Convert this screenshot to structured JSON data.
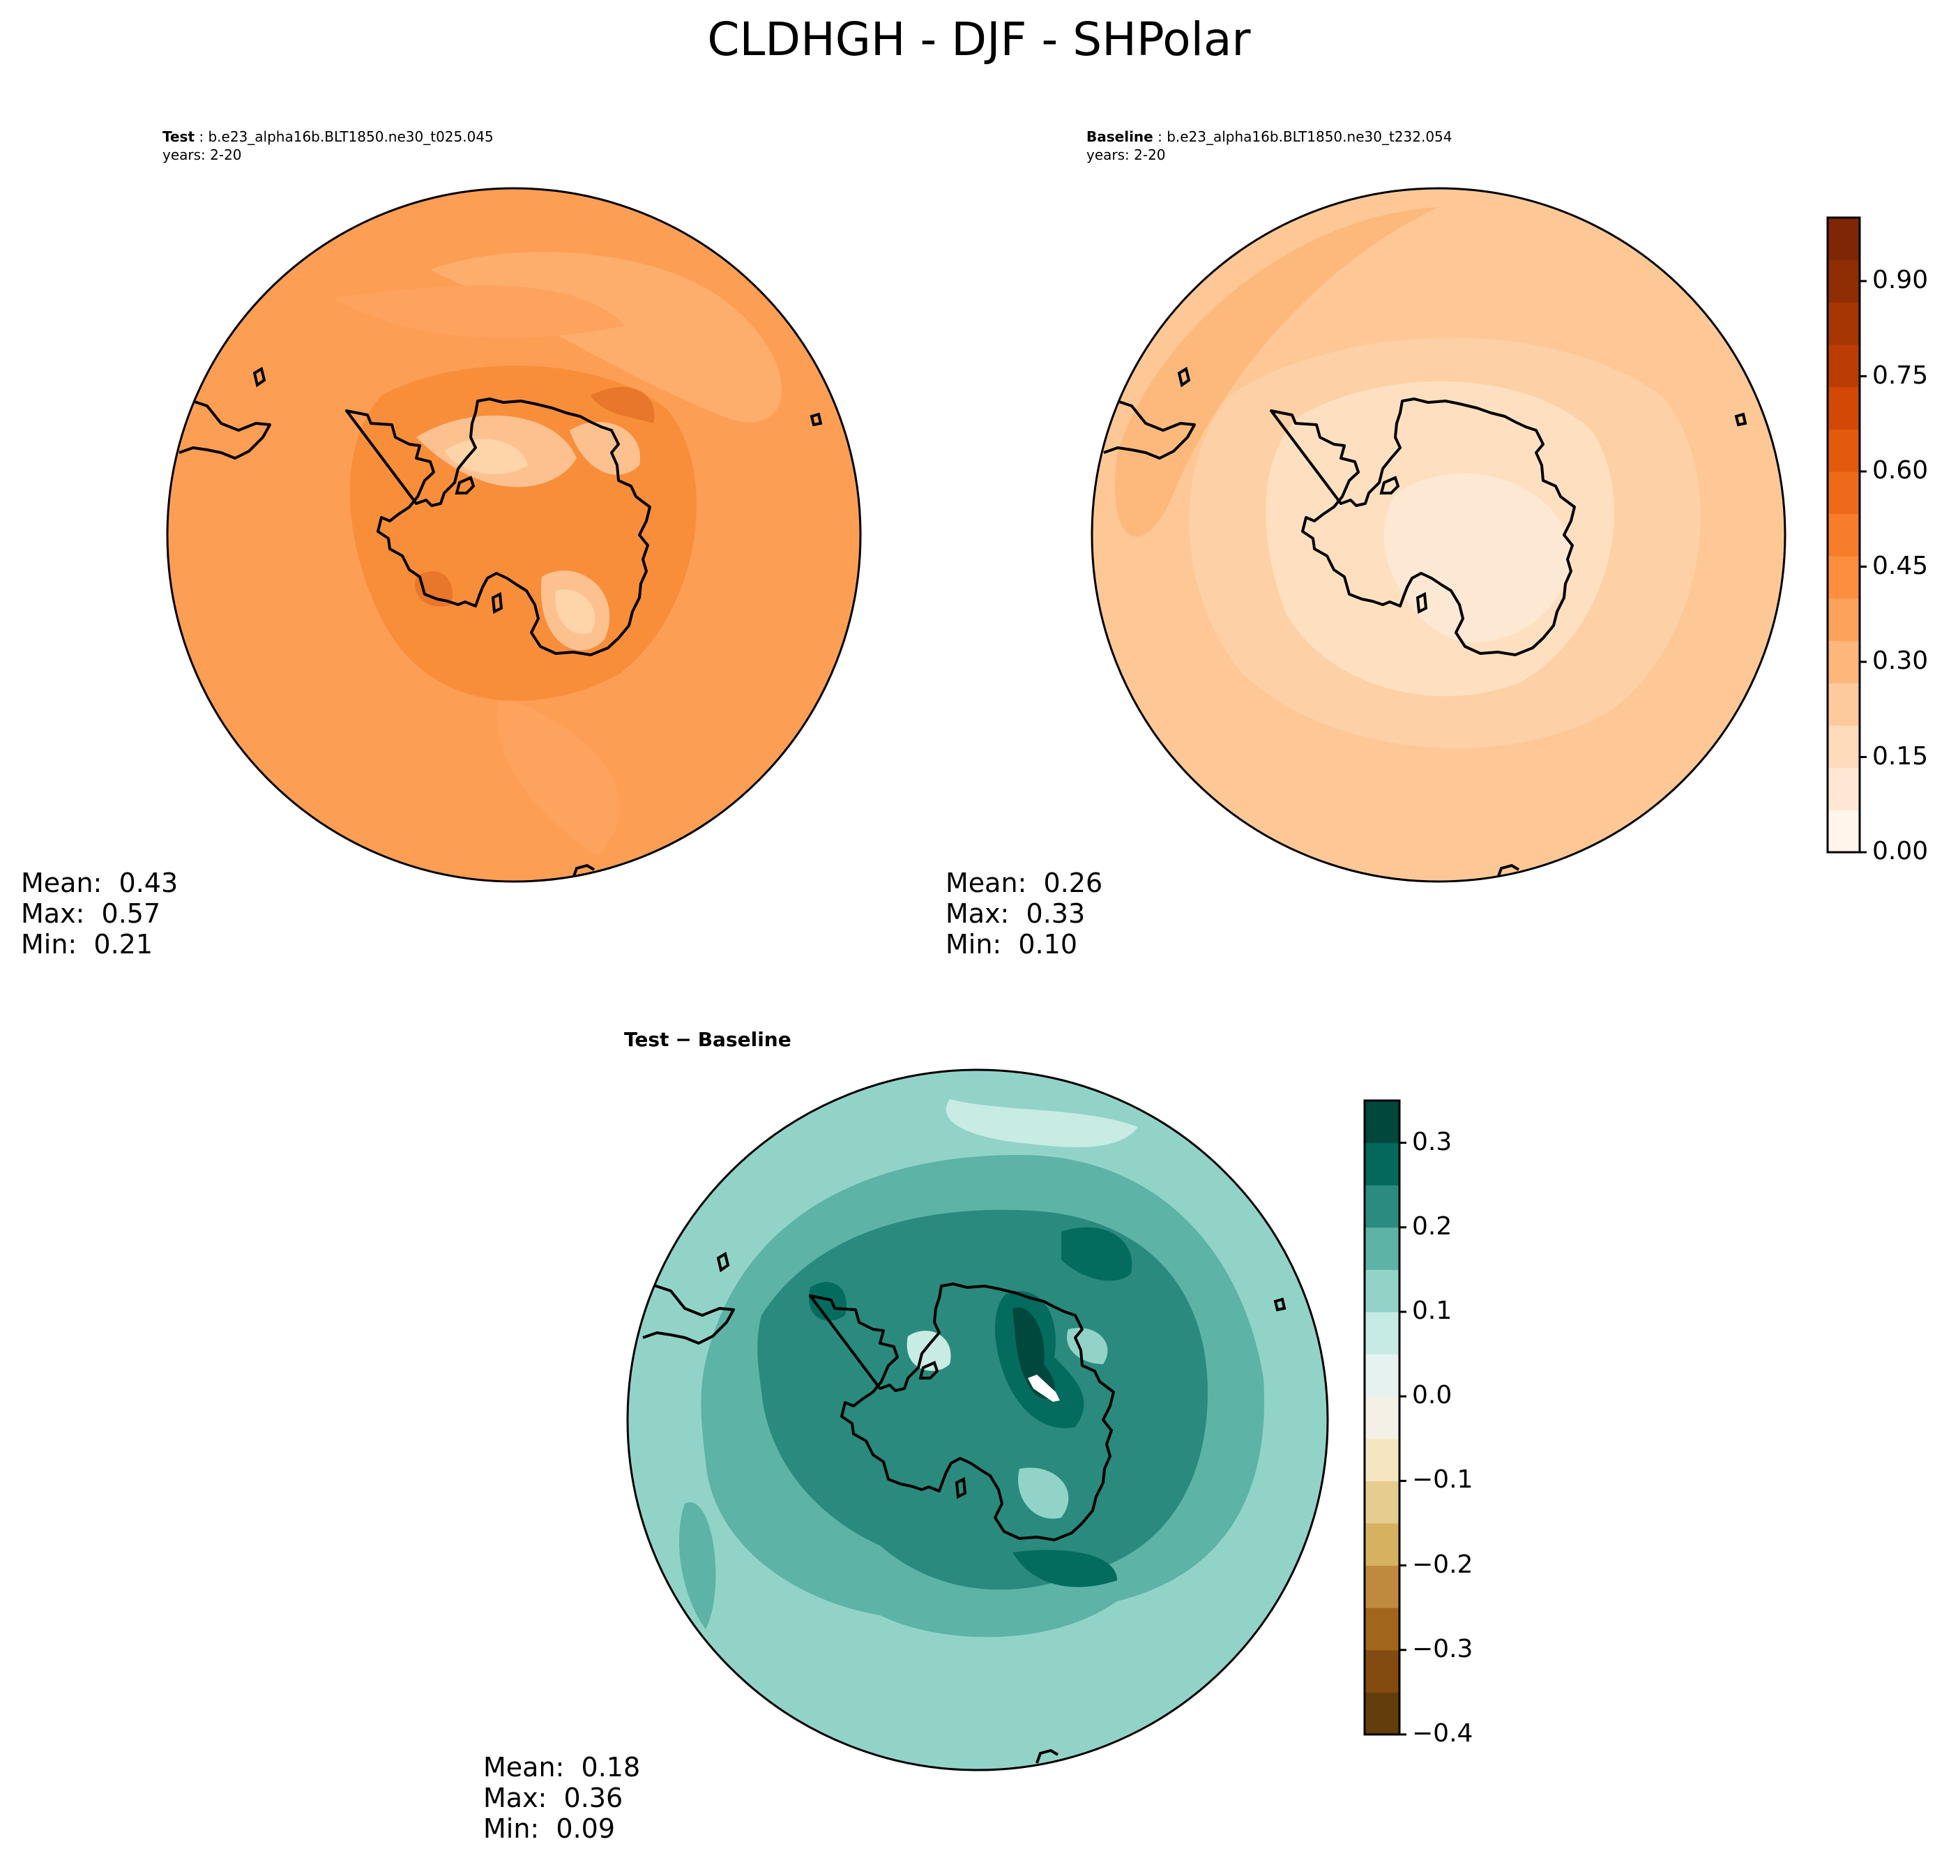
{
  "title": "CLDHGH - DJF - SHPolar",
  "colors": {
    "test_ramp": [
      "#fd9e55",
      "#fda35e",
      "#fdae6d",
      "#f88e3a",
      "#fdc18f",
      "#fed4a9",
      "#e8762b"
    ],
    "base_ramp": [
      "#fdc896",
      "#fdd0a5",
      "#fee0c0",
      "#fde8d3",
      "#fdb97c"
    ],
    "diff_ramp": [
      "#92d3c8",
      "#5cb3a6",
      "#2b8a7e",
      "#046b5f",
      "#00473d",
      "#c8ebe4",
      "#ffffff"
    ],
    "oranges_cbar": [
      "#fff5eb",
      "#fee8d3",
      "#fedcbb",
      "#fdca9b",
      "#fdb77a",
      "#fda25b",
      "#fd8e40",
      "#f87d2b",
      "#ee6a19",
      "#e35a0c",
      "#d24804",
      "#bb3d03",
      "#a63603",
      "#8f2e04",
      "#7f2704"
    ],
    "brbg_cbar": [
      "#633d0a",
      "#834b0f",
      "#a2661d",
      "#bf8a3e",
      "#d6b15f",
      "#e7cc8f",
      "#f4e6c1",
      "#f4f0e6",
      "#e5f2ef",
      "#c6ebe5",
      "#92d3c8",
      "#5cb3a6",
      "#2c8b80",
      "#04695d",
      "#01473c"
    ]
  },
  "panels": {
    "test": {
      "label": "Test",
      "case": "b.e23_alpha16b.BLT1850.ne30_t025.045",
      "years": "years: 2-20",
      "mean_label": "Mean:",
      "mean": "0.43",
      "max_label": "Max:",
      "max": "0.57",
      "min_label": "Min:",
      "min": "0.21"
    },
    "baseline": {
      "label": "Baseline",
      "case": "b.e23_alpha16b.BLT1850.ne30_t232.054",
      "years": "years: 2-20",
      "mean_label": "Mean:",
      "mean": "0.26",
      "max_label": "Max:",
      "max": "0.33",
      "min_label": "Min:",
      "min": "0.10"
    },
    "diff": {
      "label_a": "Test",
      "separator": "−",
      "label_b": "Baseline",
      "mean_label": "Mean:",
      "mean": "0.18",
      "max_label": "Max:",
      "max": "0.36",
      "min_label": "Min:",
      "min": "0.09"
    }
  },
  "colorbars": {
    "main": {
      "ticks": [
        "0.00",
        "0.15",
        "0.30",
        "0.45",
        "0.60",
        "0.75",
        "0.90"
      ],
      "tick_values": [
        0.0,
        0.15,
        0.3,
        0.45,
        0.6,
        0.75,
        0.9
      ],
      "range": [
        0.0,
        1.0
      ]
    },
    "diff": {
      "ticks": [
        "−0.4",
        "−0.3",
        "−0.2",
        "−0.1",
        "0.0",
        "0.1",
        "0.2",
        "0.3"
      ],
      "tick_values": [
        -0.4,
        -0.3,
        -0.2,
        -0.1,
        0.0,
        0.1,
        0.2,
        0.3
      ],
      "range": [
        -0.4,
        0.35
      ]
    }
  }
}
